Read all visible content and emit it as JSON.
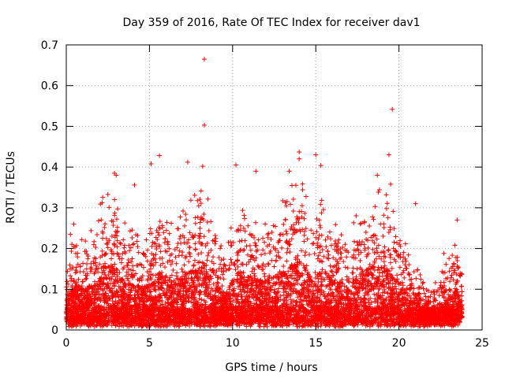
{
  "chart_data": {
    "type": "scatter",
    "title": "Day 359 of 2016, Rate Of TEC Index for receiver dav1",
    "xlabel": "GPS time / hours",
    "ylabel": "ROTI / TECUs",
    "xlim": [
      0,
      25
    ],
    "ylim": [
      0,
      0.7
    ],
    "x_ticks": [
      0,
      5,
      10,
      15,
      20,
      25
    ],
    "y_ticks": [
      0,
      0.1,
      0.2,
      0.3,
      0.4,
      0.5,
      0.6,
      0.7
    ],
    "grid": true,
    "marker": "+",
    "color": "#ff0000",
    "series_name": "ROTI",
    "outliers": [
      {
        "x": 8.3,
        "y": 0.665
      },
      {
        "x": 8.3,
        "y": 0.503
      },
      {
        "x": 19.6,
        "y": 0.542
      },
      {
        "x": 19.4,
        "y": 0.43
      },
      {
        "x": 5.1,
        "y": 0.408
      },
      {
        "x": 5.6,
        "y": 0.428
      },
      {
        "x": 7.3,
        "y": 0.412
      },
      {
        "x": 14.0,
        "y": 0.437
      },
      {
        "x": 14.0,
        "y": 0.42
      },
      {
        "x": 15.3,
        "y": 0.404
      },
      {
        "x": 15.0,
        "y": 0.43
      },
      {
        "x": 2.9,
        "y": 0.385
      },
      {
        "x": 3.0,
        "y": 0.38
      },
      {
        "x": 4.1,
        "y": 0.356
      },
      {
        "x": 8.2,
        "y": 0.402
      },
      {
        "x": 10.2,
        "y": 0.405
      },
      {
        "x": 11.4,
        "y": 0.39
      },
      {
        "x": 13.4,
        "y": 0.39
      },
      {
        "x": 18.7,
        "y": 0.38
      },
      {
        "x": 19.5,
        "y": 0.358
      },
      {
        "x": 21.0,
        "y": 0.31
      },
      {
        "x": 22.7,
        "y": 0.188
      },
      {
        "x": 23.5,
        "y": 0.27
      }
    ],
    "envelope": [
      {
        "x": 0.0,
        "top": 0.1
      },
      {
        "x": 0.3,
        "top": 0.24
      },
      {
        "x": 1.0,
        "top": 0.2
      },
      {
        "x": 1.7,
        "top": 0.22
      },
      {
        "x": 2.3,
        "top": 0.34
      },
      {
        "x": 2.9,
        "top": 0.33
      },
      {
        "x": 3.5,
        "top": 0.24
      },
      {
        "x": 4.2,
        "top": 0.22
      },
      {
        "x": 5.0,
        "top": 0.21
      },
      {
        "x": 5.7,
        "top": 0.3
      },
      {
        "x": 6.5,
        "top": 0.22
      },
      {
        "x": 7.3,
        "top": 0.29
      },
      {
        "x": 8.3,
        "top": 0.33
      },
      {
        "x": 9.0,
        "top": 0.22
      },
      {
        "x": 9.6,
        "top": 0.17
      },
      {
        "x": 10.3,
        "top": 0.3
      },
      {
        "x": 11.0,
        "top": 0.28
      },
      {
        "x": 11.7,
        "top": 0.24
      },
      {
        "x": 12.4,
        "top": 0.26
      },
      {
        "x": 13.2,
        "top": 0.3
      },
      {
        "x": 14.0,
        "top": 0.36
      },
      {
        "x": 14.8,
        "top": 0.26
      },
      {
        "x": 15.5,
        "top": 0.3
      },
      {
        "x": 16.2,
        "top": 0.24
      },
      {
        "x": 17.0,
        "top": 0.2
      },
      {
        "x": 17.8,
        "top": 0.3
      },
      {
        "x": 18.6,
        "top": 0.33
      },
      {
        "x": 19.4,
        "top": 0.3
      },
      {
        "x": 20.2,
        "top": 0.2
      },
      {
        "x": 20.9,
        "top": 0.14
      },
      {
        "x": 21.6,
        "top": 0.09
      },
      {
        "x": 22.3,
        "top": 0.09
      },
      {
        "x": 22.9,
        "top": 0.14
      },
      {
        "x": 23.5,
        "top": 0.2
      },
      {
        "x": 23.8,
        "top": 0.12
      }
    ],
    "x_data_range": [
      0,
      23.8
    ]
  }
}
